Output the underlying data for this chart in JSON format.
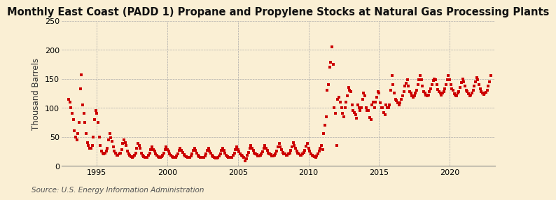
{
  "title": "Monthly East Coast (PADD 1) Propane and Propylene Stocks at Natural Gas Processing Plants",
  "ylabel": "Thousand Barrels",
  "source": "Source: U.S. Energy Information Administration",
  "bg_color": "#faefd4",
  "marker_color": "#cc0000",
  "xlim": [
    1992.5,
    2023.2
  ],
  "ylim": [
    0,
    250
  ],
  "yticks": [
    0,
    50,
    100,
    150,
    200,
    250
  ],
  "xticks": [
    1995,
    2000,
    2005,
    2010,
    2015,
    2020
  ],
  "title_fontsize": 10.5,
  "ylabel_fontsize": 8.5,
  "source_fontsize": 7.5,
  "data": {
    "x": [
      1993.0,
      1993.083,
      1993.167,
      1993.25,
      1993.333,
      1993.417,
      1993.5,
      1993.583,
      1993.667,
      1993.75,
      1993.833,
      1993.917,
      1994.0,
      1994.083,
      1994.167,
      1994.25,
      1994.333,
      1994.417,
      1994.5,
      1994.583,
      1994.667,
      1994.75,
      1994.833,
      1994.917,
      1995.0,
      1995.083,
      1995.167,
      1995.25,
      1995.333,
      1995.417,
      1995.5,
      1995.583,
      1995.667,
      1995.75,
      1995.833,
      1995.917,
      1996.0,
      1996.083,
      1996.167,
      1996.25,
      1996.333,
      1996.417,
      1996.5,
      1996.583,
      1996.667,
      1996.75,
      1996.833,
      1996.917,
      1997.0,
      1997.083,
      1997.167,
      1997.25,
      1997.333,
      1997.417,
      1997.5,
      1997.583,
      1997.667,
      1997.75,
      1997.833,
      1997.917,
      1998.0,
      1998.083,
      1998.167,
      1998.25,
      1998.333,
      1998.417,
      1998.5,
      1998.583,
      1998.667,
      1998.75,
      1998.833,
      1998.917,
      1999.0,
      1999.083,
      1999.167,
      1999.25,
      1999.333,
      1999.417,
      1999.5,
      1999.583,
      1999.667,
      1999.75,
      1999.833,
      1999.917,
      2000.0,
      2000.083,
      2000.167,
      2000.25,
      2000.333,
      2000.417,
      2000.5,
      2000.583,
      2000.667,
      2000.75,
      2000.833,
      2000.917,
      2001.0,
      2001.083,
      2001.167,
      2001.25,
      2001.333,
      2001.417,
      2001.5,
      2001.583,
      2001.667,
      2001.75,
      2001.833,
      2001.917,
      2002.0,
      2002.083,
      2002.167,
      2002.25,
      2002.333,
      2002.417,
      2002.5,
      2002.583,
      2002.667,
      2002.75,
      2002.833,
      2002.917,
      2003.0,
      2003.083,
      2003.167,
      2003.25,
      2003.333,
      2003.417,
      2003.5,
      2003.583,
      2003.667,
      2003.75,
      2003.833,
      2003.917,
      2004.0,
      2004.083,
      2004.167,
      2004.25,
      2004.333,
      2004.417,
      2004.5,
      2004.583,
      2004.667,
      2004.75,
      2004.833,
      2004.917,
      2005.0,
      2005.083,
      2005.167,
      2005.25,
      2005.333,
      2005.417,
      2005.5,
      2005.583,
      2005.667,
      2005.75,
      2005.833,
      2005.917,
      2006.0,
      2006.083,
      2006.167,
      2006.25,
      2006.333,
      2006.417,
      2006.5,
      2006.583,
      2006.667,
      2006.75,
      2006.833,
      2006.917,
      2007.0,
      2007.083,
      2007.167,
      2007.25,
      2007.333,
      2007.417,
      2007.5,
      2007.583,
      2007.667,
      2007.75,
      2007.833,
      2007.917,
      2008.0,
      2008.083,
      2008.167,
      2008.25,
      2008.333,
      2008.417,
      2008.5,
      2008.583,
      2008.667,
      2008.75,
      2008.833,
      2008.917,
      2009.0,
      2009.083,
      2009.167,
      2009.25,
      2009.333,
      2009.417,
      2009.5,
      2009.583,
      2009.667,
      2009.75,
      2009.833,
      2009.917,
      2010.0,
      2010.083,
      2010.167,
      2010.25,
      2010.333,
      2010.417,
      2010.5,
      2010.583,
      2010.667,
      2010.75,
      2010.833,
      2010.917,
      2011.0,
      2011.083,
      2011.167,
      2011.25,
      2011.333,
      2011.417,
      2011.5,
      2011.583,
      2011.667,
      2011.75,
      2011.833,
      2011.917,
      2012.0,
      2012.083,
      2012.167,
      2012.25,
      2012.333,
      2012.417,
      2012.5,
      2012.583,
      2012.667,
      2012.75,
      2012.833,
      2012.917,
      2013.0,
      2013.083,
      2013.167,
      2013.25,
      2013.333,
      2013.417,
      2013.5,
      2013.583,
      2013.667,
      2013.75,
      2013.833,
      2013.917,
      2014.0,
      2014.083,
      2014.167,
      2014.25,
      2014.333,
      2014.417,
      2014.5,
      2014.583,
      2014.667,
      2014.75,
      2014.833,
      2014.917,
      2015.0,
      2015.083,
      2015.167,
      2015.25,
      2015.333,
      2015.417,
      2015.5,
      2015.583,
      2015.667,
      2015.75,
      2015.833,
      2015.917,
      2016.0,
      2016.083,
      2016.167,
      2016.25,
      2016.333,
      2016.417,
      2016.5,
      2016.583,
      2016.667,
      2016.75,
      2016.833,
      2016.917,
      2017.0,
      2017.083,
      2017.167,
      2017.25,
      2017.333,
      2017.417,
      2017.5,
      2017.583,
      2017.667,
      2017.75,
      2017.833,
      2017.917,
      2018.0,
      2018.083,
      2018.167,
      2018.25,
      2018.333,
      2018.417,
      2018.5,
      2018.583,
      2018.667,
      2018.75,
      2018.833,
      2018.917,
      2019.0,
      2019.083,
      2019.167,
      2019.25,
      2019.333,
      2019.417,
      2019.5,
      2019.583,
      2019.667,
      2019.75,
      2019.833,
      2019.917,
      2020.0,
      2020.083,
      2020.167,
      2020.25,
      2020.333,
      2020.417,
      2020.5,
      2020.583,
      2020.667,
      2020.75,
      2020.833,
      2020.917,
      2021.0,
      2021.083,
      2021.167,
      2021.25,
      2021.333,
      2021.417,
      2021.5,
      2021.583,
      2021.667,
      2021.75,
      2021.833,
      2021.917,
      2022.0,
      2022.083,
      2022.167,
      2022.25,
      2022.333,
      2022.417,
      2022.5,
      2022.583,
      2022.667,
      2022.75,
      2022.833,
      2022.917
    ],
    "y": [
      115,
      110,
      100,
      90,
      80,
      60,
      50,
      45,
      55,
      75,
      133,
      157,
      105,
      90,
      75,
      55,
      40,
      35,
      30,
      30,
      35,
      50,
      80,
      95,
      90,
      75,
      50,
      35,
      25,
      22,
      20,
      22,
      25,
      30,
      45,
      55,
      48,
      42,
      32,
      25,
      22,
      18,
      18,
      20,
      22,
      28,
      38,
      45,
      40,
      35,
      25,
      20,
      18,
      16,
      15,
      16,
      18,
      22,
      30,
      38,
      35,
      30,
      22,
      18,
      16,
      14,
      14,
      15,
      18,
      22,
      28,
      32,
      28,
      25,
      20,
      18,
      16,
      14,
      15,
      16,
      18,
      22,
      28,
      32,
      28,
      25,
      20,
      18,
      16,
      14,
      14,
      15,
      17,
      21,
      27,
      30,
      26,
      23,
      19,
      17,
      16,
      14,
      14,
      15,
      17,
      20,
      26,
      30,
      26,
      22,
      18,
      16,
      15,
      14,
      14,
      15,
      17,
      21,
      27,
      30,
      25,
      22,
      18,
      16,
      15,
      13,
      13,
      15,
      17,
      21,
      27,
      30,
      26,
      22,
      18,
      16,
      15,
      14,
      14,
      15,
      18,
      22,
      28,
      32,
      28,
      24,
      20,
      18,
      17,
      14,
      8,
      12,
      18,
      23,
      30,
      35,
      30,
      26,
      22,
      20,
      19,
      17,
      17,
      18,
      20,
      24,
      30,
      35,
      30,
      26,
      22,
      20,
      19,
      17,
      17,
      18,
      20,
      25,
      32,
      38,
      32,
      28,
      23,
      21,
      20,
      18,
      18,
      20,
      22,
      26,
      33,
      40,
      35,
      30,
      25,
      22,
      20,
      18,
      18,
      20,
      23,
      27,
      34,
      38,
      30,
      25,
      20,
      18,
      17,
      16,
      15,
      17,
      20,
      25,
      30,
      35,
      28,
      55,
      70,
      85,
      130,
      140,
      170,
      178,
      205,
      175,
      100,
      90,
      35,
      115,
      118,
      110,
      100,
      90,
      85,
      100,
      110,
      120,
      135,
      130,
      128,
      105,
      95,
      92,
      88,
      82,
      105,
      100,
      95,
      100,
      115,
      125,
      120,
      100,
      95,
      95,
      83,
      80,
      105,
      110,
      100,
      110,
      118,
      128,
      125,
      108,
      100,
      100,
      92,
      88,
      105,
      100,
      100,
      105,
      130,
      155,
      140,
      125,
      115,
      112,
      108,
      105,
      108,
      115,
      120,
      128,
      138,
      142,
      148,
      138,
      128,
      125,
      120,
      118,
      120,
      125,
      130,
      140,
      148,
      155,
      148,
      138,
      128,
      125,
      122,
      120,
      122,
      128,
      133,
      140,
      147,
      150,
      148,
      140,
      132,
      128,
      126,
      122,
      125,
      128,
      133,
      140,
      148,
      155,
      148,
      140,
      133,
      130,
      124,
      122,
      120,
      125,
      128,
      135,
      143,
      150,
      145,
      138,
      130,
      128,
      124,
      120,
      122,
      126,
      130,
      137,
      145,
      152,
      148,
      140,
      133,
      128,
      125,
      123,
      125,
      127,
      130,
      138,
      145,
      155
    ]
  }
}
